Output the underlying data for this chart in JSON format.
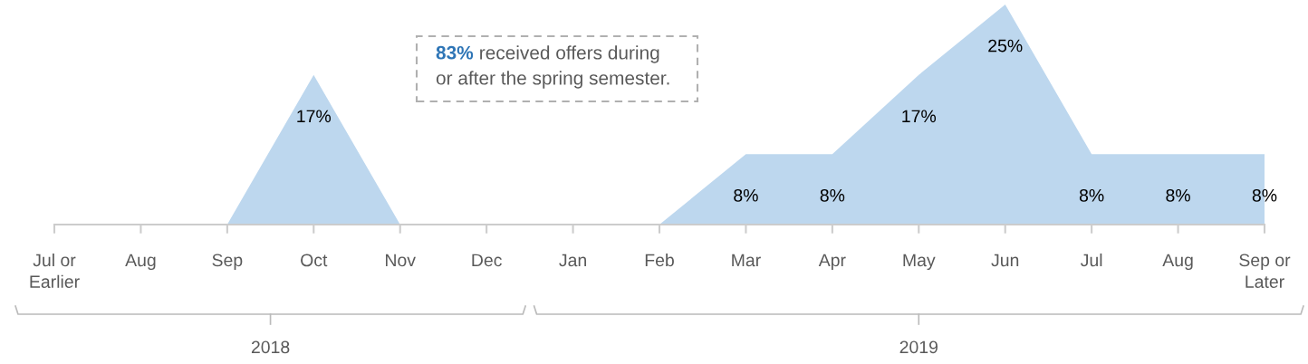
{
  "chart_data": {
    "type": "area",
    "categories": [
      "Jul or\nEarlier",
      "Aug",
      "Sep",
      "Oct",
      "Nov",
      "Dec",
      "Jan",
      "Feb",
      "Mar",
      "Apr",
      "May",
      "Jun",
      "Jul",
      "Aug",
      "Sep or\nLater"
    ],
    "series": [
      {
        "color": "#bdd7ee",
        "values": [
          0,
          0,
          0,
          17,
          0,
          0,
          0,
          0,
          8,
          8,
          17,
          25,
          8,
          8,
          8
        ],
        "value_labels": [
          null,
          null,
          null,
          "17%",
          null,
          null,
          null,
          null,
          "8%",
          "8%",
          "17%",
          "25%",
          "8%",
          "8%",
          "8%"
        ]
      }
    ],
    "annotations": [
      "83% received offers during\nor after the spring semester.",
      "2018",
      "2019"
    ],
    "grid": false,
    "legend": false
  }
}
